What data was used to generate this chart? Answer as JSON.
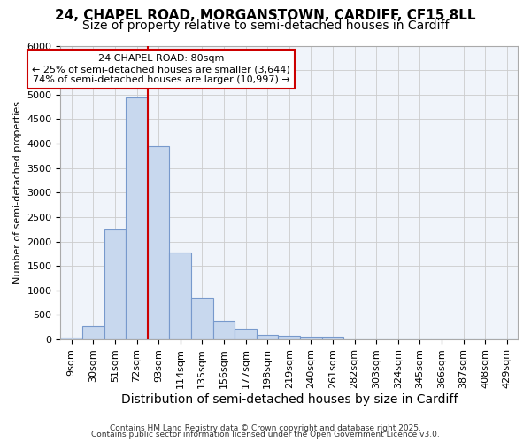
{
  "title1": "24, CHAPEL ROAD, MORGANSTOWN, CARDIFF, CF15 8LL",
  "title2": "Size of property relative to semi-detached houses in Cardiff",
  "xlabel": "Distribution of semi-detached houses by size in Cardiff",
  "ylabel": "Number of semi-detached properties",
  "bin_labels": [
    "9sqm",
    "30sqm",
    "51sqm",
    "72sqm",
    "93sqm",
    "114sqm",
    "135sqm",
    "156sqm",
    "177sqm",
    "198sqm",
    "219sqm",
    "240sqm",
    "261sqm",
    "282sqm",
    "303sqm",
    "324sqm",
    "345sqm",
    "366sqm",
    "387sqm",
    "408sqm",
    "429sqm"
  ],
  "bar_heights": [
    40,
    270,
    2250,
    4950,
    3950,
    1780,
    850,
    390,
    215,
    100,
    75,
    65,
    50,
    0,
    0,
    0,
    0,
    0,
    0,
    0,
    0
  ],
  "bar_color": "#c8d8ee",
  "bar_edge_color": "#7799cc",
  "red_line_color": "#cc0000",
  "annotation_line1": "24 CHAPEL ROAD: 80sqm",
  "annotation_line2": "← 25% of semi-detached houses are smaller (3,644)",
  "annotation_line3": "74% of semi-detached houses are larger (10,997) →",
  "annotation_box_color": "#ffffff",
  "annotation_box_edge": "#cc0000",
  "ylim": [
    0,
    6000
  ],
  "yticks": [
    0,
    500,
    1000,
    1500,
    2000,
    2500,
    3000,
    3500,
    4000,
    4500,
    5000,
    5500,
    6000
  ],
  "grid_color": "#cccccc",
  "bg_color": "#ffffff",
  "plot_bg_color": "#f0f4fa",
  "footer1": "Contains HM Land Registry data © Crown copyright and database right 2025.",
  "footer2": "Contains public sector information licensed under the Open Government Licence v3.0.",
  "title_fontsize": 11,
  "subtitle_fontsize": 10,
  "xlabel_fontsize": 10,
  "ylabel_fontsize": 8,
  "tick_fontsize": 8,
  "annotation_fontsize": 8,
  "footer_fontsize": 6.5
}
